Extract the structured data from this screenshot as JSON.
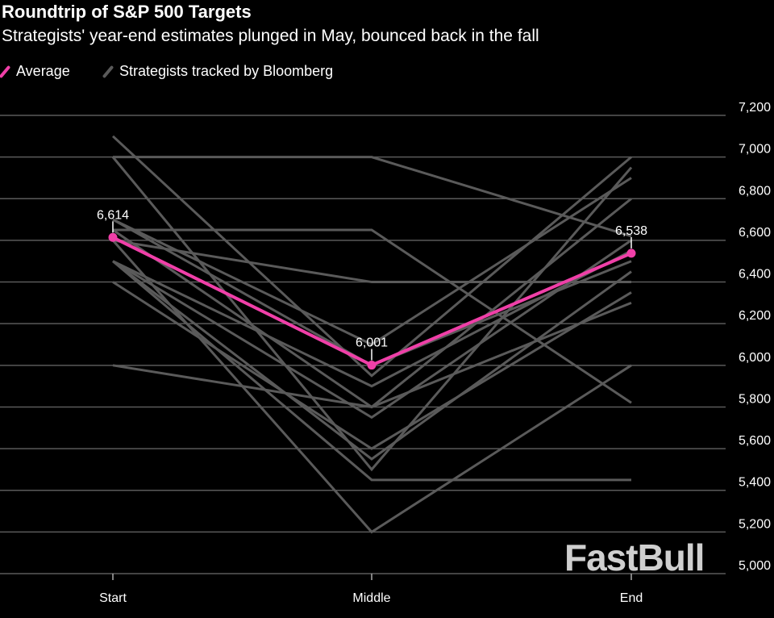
{
  "chart_data": {
    "type": "line",
    "title": "Roundtrip of S&P 500 Targets",
    "subtitle": "Strategists' year-end estimates plunged in May, bounced back in the fall",
    "categories": [
      "Start",
      "Middle",
      "End"
    ],
    "ylim": [
      5000,
      7200
    ],
    "yticks": [
      5000,
      5200,
      5400,
      5600,
      5800,
      6000,
      6200,
      6400,
      6600,
      6800,
      7000,
      7200
    ],
    "ytick_labels": [
      "5,000",
      "5,200",
      "5,400",
      "5,600",
      "5,800",
      "6,000",
      "6,200",
      "6,400",
      "6,600",
      "6,800",
      "7,000",
      "7,200"
    ],
    "grid": true,
    "legend_position": "top-left",
    "average": {
      "name": "Average",
      "color": "#f03fa8",
      "values": [
        6614,
        6001,
        6538
      ],
      "labels": [
        "6,614",
        "6,001",
        "6,538"
      ]
    },
    "strategists": {
      "name": "Strategists tracked by Bloomberg",
      "color": "#5a5a5a",
      "series": [
        [
          7000,
          7000,
          6620
        ],
        [
          7100,
          5950,
          7000
        ],
        [
          7000,
          5500,
          6950
        ],
        [
          6700,
          6100,
          6900
        ],
        [
          6650,
          6650,
          5820
        ],
        [
          6650,
          5800,
          6800
        ],
        [
          6600,
          5200,
          6000
        ],
        [
          6500,
          5450,
          5450
        ],
        [
          6500,
          5900,
          6550
        ],
        [
          6500,
          5550,
          6450
        ],
        [
          6400,
          5600,
          6350
        ],
        [
          6000,
          5800,
          6300
        ],
        [
          6600,
          6400,
          6400
        ],
        [
          6500,
          5750,
          6600
        ],
        [
          6700,
          6000,
          6500
        ]
      ]
    }
  },
  "watermark": "FastBull"
}
